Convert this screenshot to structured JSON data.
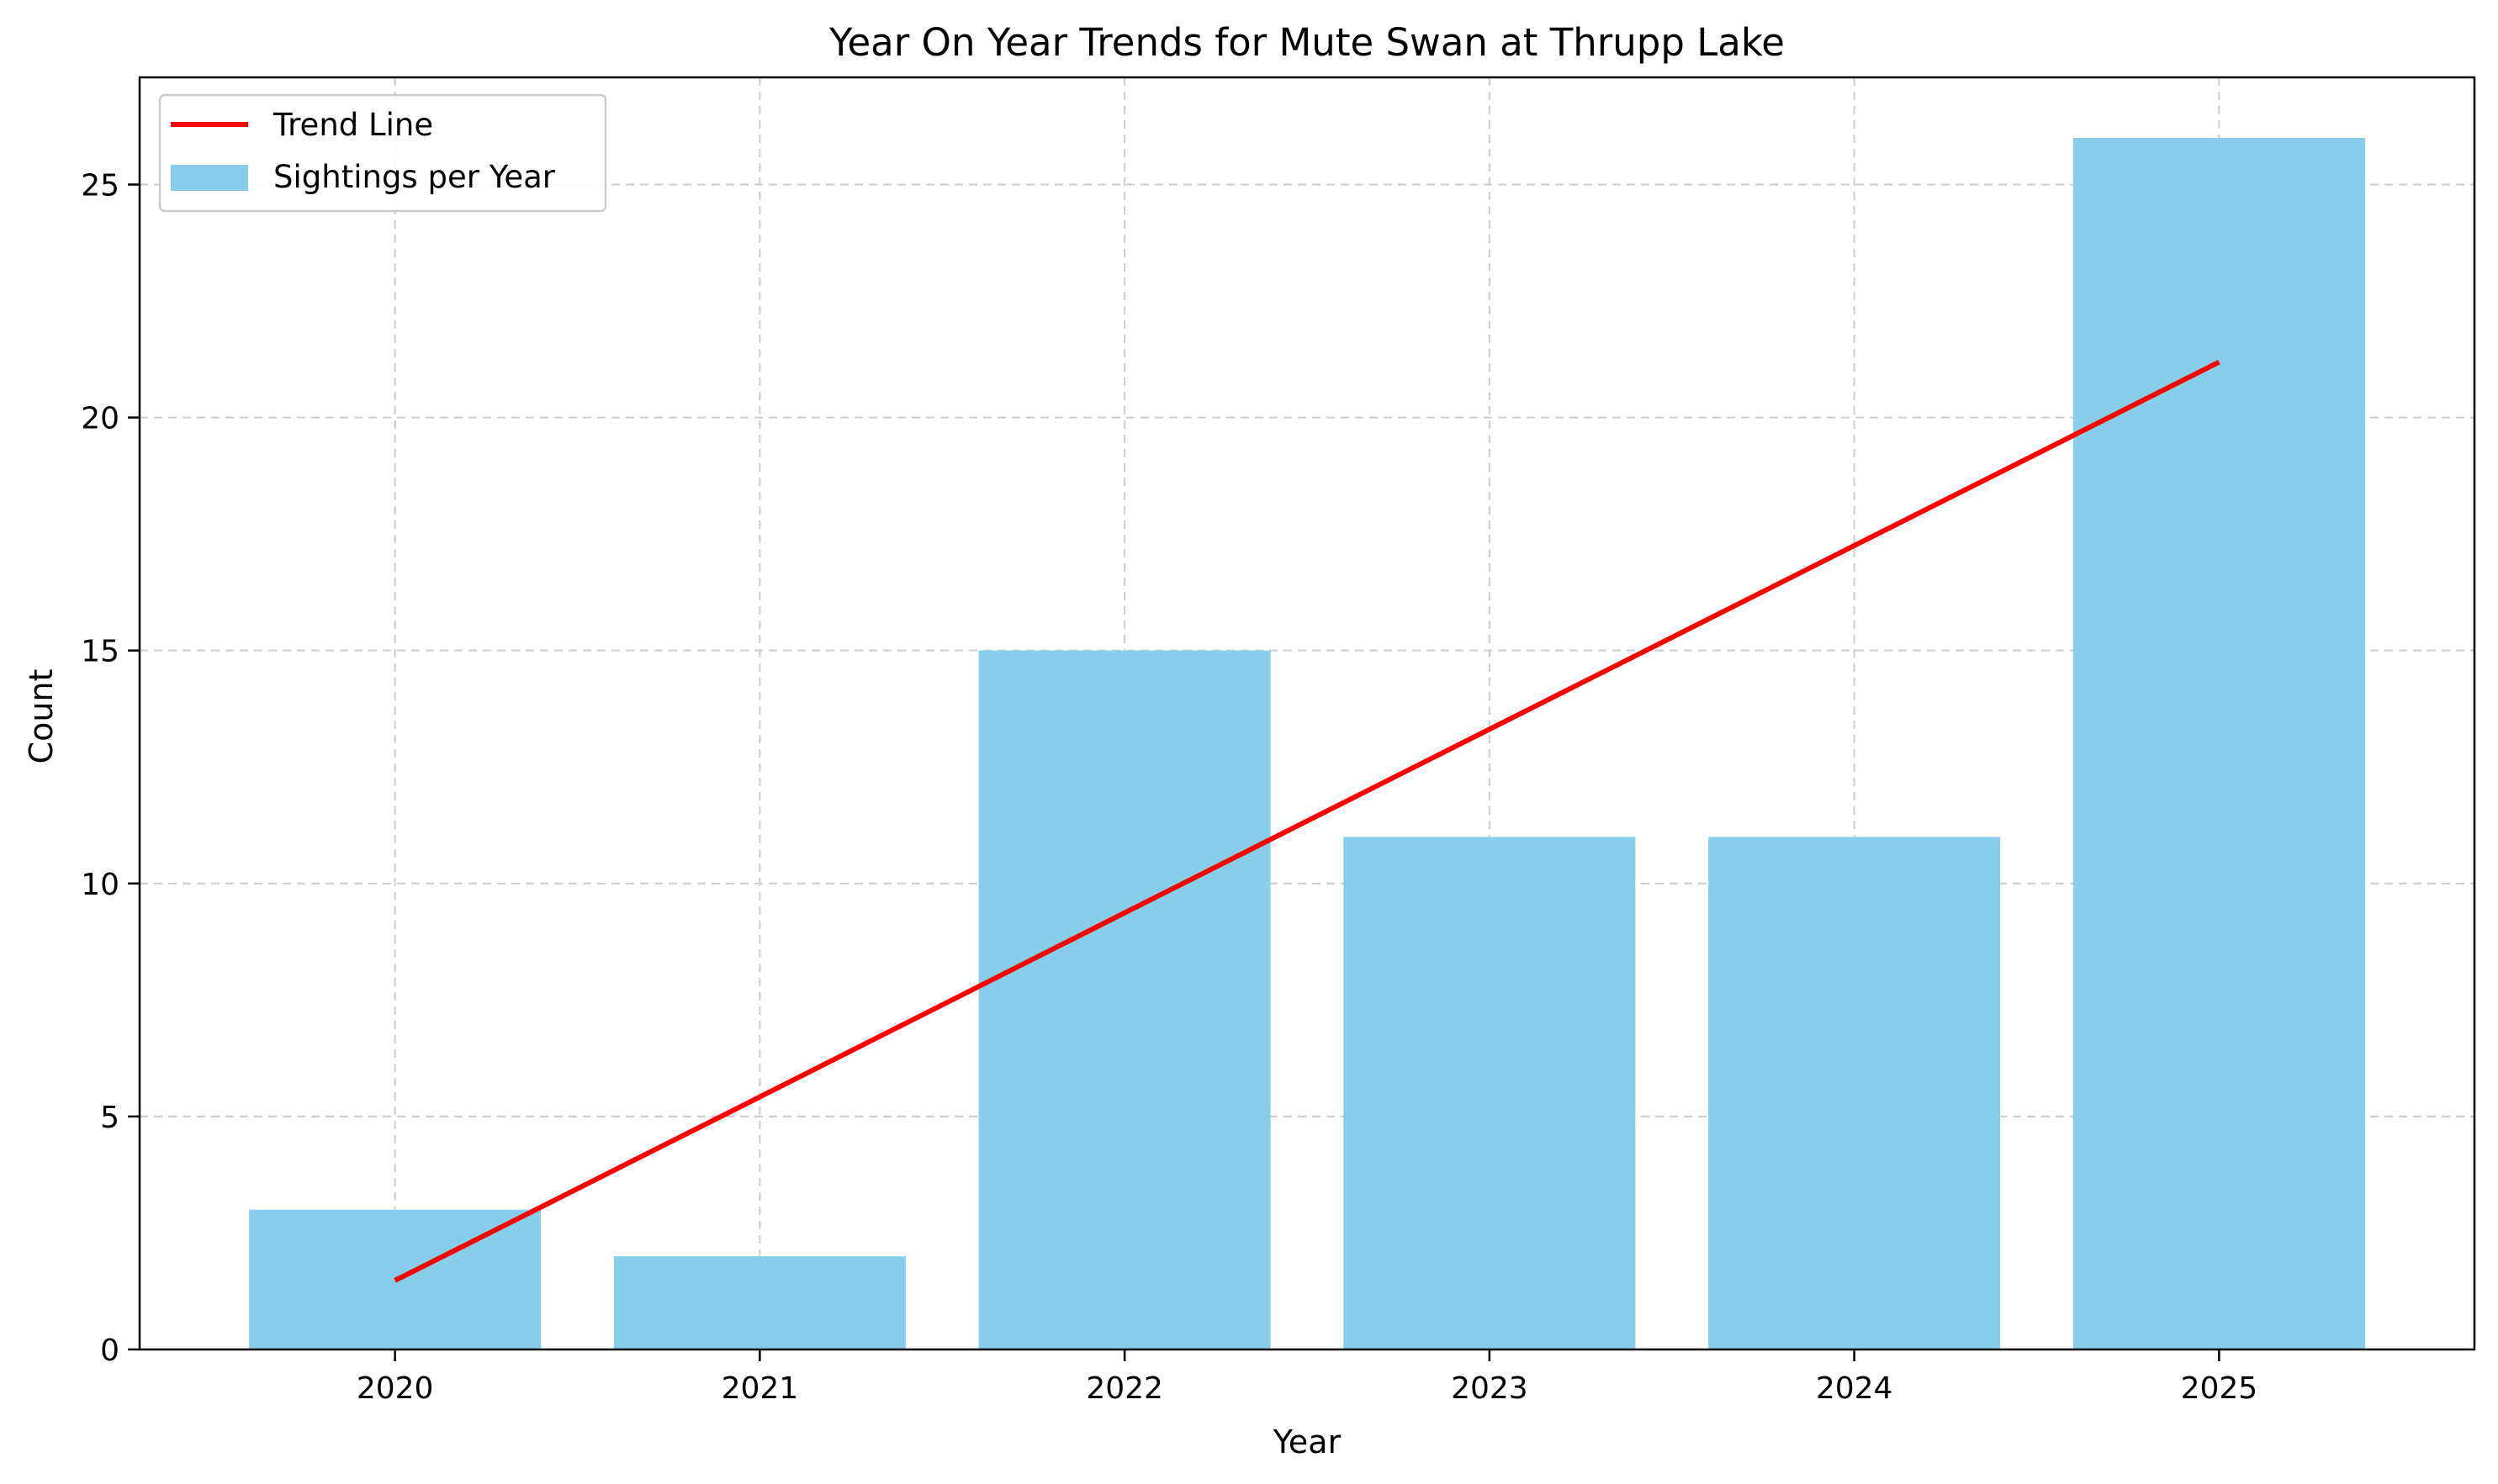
{
  "chart_data": {
    "type": "bar",
    "title": "Year On Year Trends for Mute Swan at Thrupp Lake",
    "xlabel": "Year",
    "ylabel": "Count",
    "categories": [
      "2020",
      "2021",
      "2022",
      "2023",
      "2024",
      "2025"
    ],
    "series": [
      {
        "name": "Sightings per Year",
        "type": "bar",
        "values": [
          3,
          2,
          15,
          11,
          11,
          26
        ],
        "color": "#87ceeb"
      },
      {
        "name": "Trend Line",
        "type": "line",
        "values": [
          1.48,
          5.42,
          9.37,
          13.31,
          17.25,
          21.19
        ],
        "color": "#ff0000"
      }
    ],
    "ylim": [
      0,
      27.3
    ],
    "yticks": [
      0,
      5,
      10,
      15,
      20,
      25
    ],
    "grid": true,
    "legend": "upper-left"
  }
}
